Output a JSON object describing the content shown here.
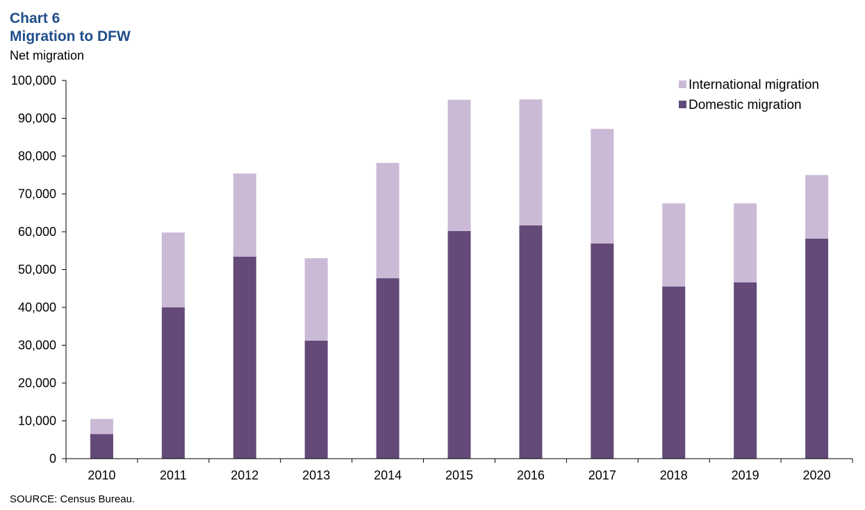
{
  "header": {
    "chart_number": "Chart 6",
    "title": "Migration to DFW",
    "units_label": "Net migration"
  },
  "source": "SOURCE:  Census Bureau.",
  "colors": {
    "international": "#CBBAD6",
    "domestic": "#634A78",
    "axis": "#000000",
    "title": "#1F4E89"
  },
  "chart_data": {
    "type": "bar",
    "stacked": true,
    "title": "Migration to DFW",
    "ylabel": "Net migration",
    "xlabel": "",
    "categories": [
      "2010",
      "2011",
      "2012",
      "2013",
      "2014",
      "2015",
      "2016",
      "2017",
      "2018",
      "2019",
      "2020"
    ],
    "series": [
      {
        "name": "Domestic migration",
        "values": [
          6500,
          40000,
          53400,
          31200,
          47700,
          60200,
          61700,
          56900,
          45500,
          46600,
          58200
        ]
      },
      {
        "name": "International migration",
        "values": [
          4000,
          19800,
          22000,
          21800,
          30500,
          34700,
          33300,
          30300,
          22000,
          20900,
          16800
        ]
      }
    ],
    "ylim": [
      0,
      100000
    ],
    "yticks": [
      0,
      10000,
      20000,
      30000,
      40000,
      50000,
      60000,
      70000,
      80000,
      90000,
      100000
    ],
    "ytick_labels": [
      "0",
      "10,000",
      "20,000",
      "30,000",
      "40,000",
      "50,000",
      "60,000",
      "70,000",
      "80,000",
      "90,000",
      "100,000"
    ],
    "legend": {
      "placement": "top-right",
      "entries": [
        "International migration",
        "Domestic migration"
      ]
    },
    "grid": false
  }
}
